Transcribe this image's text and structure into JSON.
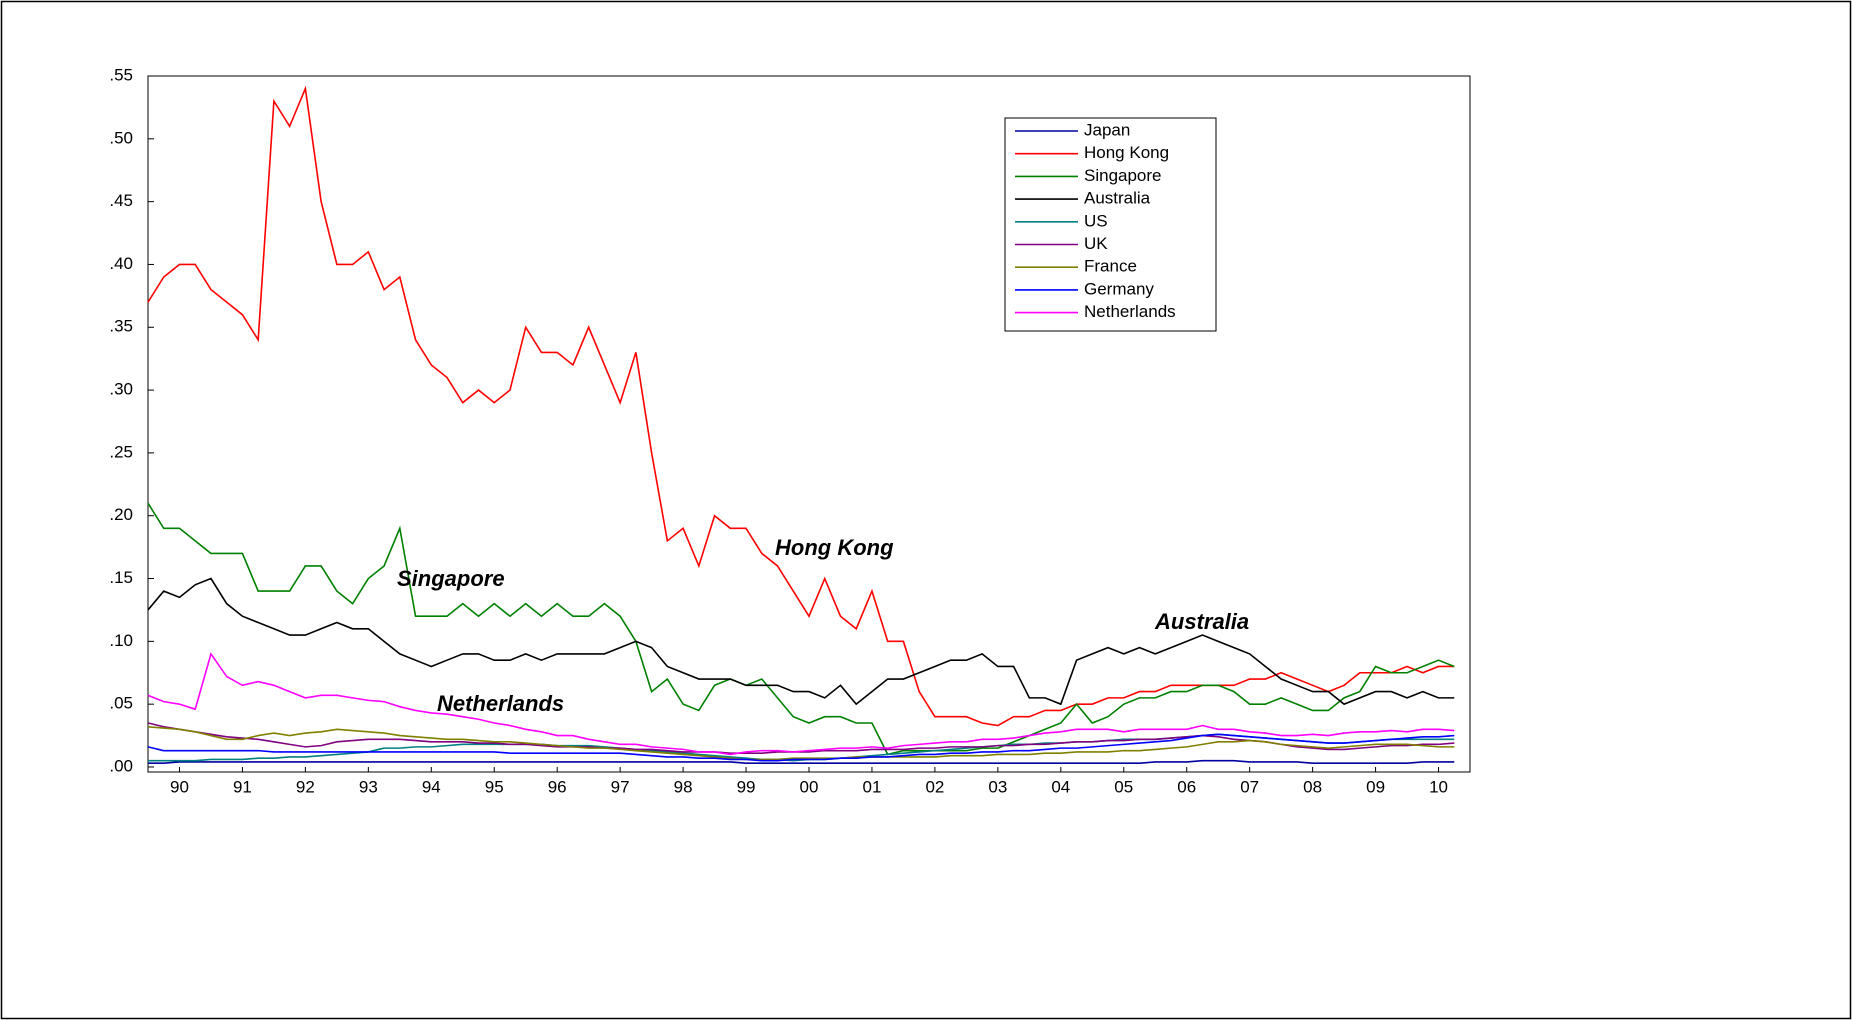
{
  "chart_data": {
    "type": "line",
    "x": [
      1990,
      1990.25,
      1990.5,
      1990.75,
      1991,
      1991.25,
      1991.5,
      1991.75,
      1992,
      1992.25,
      1992.5,
      1992.75,
      1993,
      1993.25,
      1993.5,
      1993.75,
      1994,
      1994.25,
      1994.5,
      1994.75,
      1995,
      1995.25,
      1995.5,
      1995.75,
      1996,
      1996.25,
      1996.5,
      1996.75,
      1997,
      1997.25,
      1997.5,
      1997.75,
      1998,
      1998.25,
      1998.5,
      1998.75,
      1999,
      1999.25,
      1999.5,
      1999.75,
      2000,
      2000.25,
      2000.5,
      2000.75,
      2001,
      2001.25,
      2001.5,
      2001.75,
      2002,
      2002.25,
      2002.5,
      2002.75,
      2003,
      2003.25,
      2003.5,
      2003.75,
      2004,
      2004.25,
      2004.5,
      2004.75,
      2005,
      2005.25,
      2005.5,
      2005.75,
      2006,
      2006.25,
      2006.5,
      2006.75,
      2007,
      2007.25,
      2007.5,
      2007.75,
      2008,
      2008.25,
      2008.5,
      2008.75,
      2009,
      2009.25,
      2009.5,
      2009.75,
      2010,
      2010.25,
      2010.5,
      2010.75
    ],
    "xlim": [
      1990,
      2011
    ],
    "xticks": [
      {
        "value": 1990.5,
        "label": "90"
      },
      {
        "value": 1991.5,
        "label": "91"
      },
      {
        "value": 1992.5,
        "label": "92"
      },
      {
        "value": 1993.5,
        "label": "93"
      },
      {
        "value": 1994.5,
        "label": "94"
      },
      {
        "value": 1995.5,
        "label": "95"
      },
      {
        "value": 1996.5,
        "label": "96"
      },
      {
        "value": 1997.5,
        "label": "97"
      },
      {
        "value": 1998.5,
        "label": "98"
      },
      {
        "value": 1999.5,
        "label": "99"
      },
      {
        "value": 2000.5,
        "label": "00"
      },
      {
        "value": 2001.5,
        "label": "01"
      },
      {
        "value": 2002.5,
        "label": "02"
      },
      {
        "value": 2003.5,
        "label": "03"
      },
      {
        "value": 2004.5,
        "label": "04"
      },
      {
        "value": 2005.5,
        "label": "05"
      },
      {
        "value": 2006.5,
        "label": "06"
      },
      {
        "value": 2007.5,
        "label": "07"
      },
      {
        "value": 2008.5,
        "label": "08"
      },
      {
        "value": 2009.5,
        "label": "09"
      },
      {
        "value": 2010.5,
        "label": "10"
      }
    ],
    "ylim": [
      -0.004,
      0.55
    ],
    "yticks": [
      {
        "value": 0,
        "label": ".00"
      },
      {
        "value": 0.05,
        "label": ".05"
      },
      {
        "value": 0.1,
        "label": ".10"
      },
      {
        "value": 0.15,
        "label": ".15"
      },
      {
        "value": 0.2,
        "label": ".20"
      },
      {
        "value": 0.25,
        "label": ".25"
      },
      {
        "value": 0.3,
        "label": ".30"
      },
      {
        "value": 0.35,
        "label": ".35"
      },
      {
        "value": 0.4,
        "label": ".40"
      },
      {
        "value": 0.45,
        "label": ".45"
      },
      {
        "value": 0.5,
        "label": ".50"
      },
      {
        "value": 0.55,
        "label": ".55"
      }
    ],
    "legend": "upper right",
    "annotations": [
      "Hong Kong",
      "Singapore",
      "Australia",
      "Netherlands"
    ],
    "series": [
      {
        "name": "Japan",
        "color": "#0000a0",
        "values": [
          0.003,
          0.003,
          0.004,
          0.004,
          0.004,
          0.004,
          0.004,
          0.004,
          0.004,
          0.004,
          0.004,
          0.004,
          0.004,
          0.004,
          0.004,
          0.004,
          0.004,
          0.004,
          0.004,
          0.004,
          0.004,
          0.004,
          0.004,
          0.004,
          0.004,
          0.004,
          0.004,
          0.004,
          0.004,
          0.004,
          0.004,
          0.004,
          0.004,
          0.004,
          0.004,
          0.004,
          0.004,
          0.004,
          0.003,
          0.003,
          0.003,
          0.003,
          0.003,
          0.003,
          0.003,
          0.003,
          0.003,
          0.003,
          0.003,
          0.003,
          0.003,
          0.003,
          0.003,
          0.003,
          0.003,
          0.003,
          0.003,
          0.003,
          0.003,
          0.003,
          0.003,
          0.003,
          0.003,
          0.003,
          0.004,
          0.004,
          0.004,
          0.005,
          0.005,
          0.005,
          0.004,
          0.004,
          0.004,
          0.004,
          0.003,
          0.003,
          0.003,
          0.003,
          0.003,
          0.003,
          0.003,
          0.004,
          0.004,
          0.004
        ]
      },
      {
        "name": "Hong Kong",
        "color": "#ff0000",
        "values": [
          0.37,
          0.39,
          0.4,
          0.4,
          0.38,
          0.37,
          0.36,
          0.34,
          0.53,
          0.51,
          0.54,
          0.45,
          0.4,
          0.4,
          0.41,
          0.38,
          0.39,
          0.34,
          0.32,
          0.31,
          0.29,
          0.3,
          0.29,
          0.3,
          0.35,
          0.33,
          0.33,
          0.32,
          0.35,
          0.32,
          0.29,
          0.33,
          0.25,
          0.18,
          0.19,
          0.16,
          0.2,
          0.19,
          0.19,
          0.17,
          0.16,
          0.14,
          0.12,
          0.15,
          0.12,
          0.11,
          0.14,
          0.1,
          0.1,
          0.06,
          0.04,
          0.04,
          0.04,
          0.035,
          0.033,
          0.04,
          0.04,
          0.045,
          0.045,
          0.05,
          0.05,
          0.055,
          0.055,
          0.06,
          0.06,
          0.065,
          0.065,
          0.065,
          0.065,
          0.065,
          0.07,
          0.07,
          0.075,
          0.07,
          0.065,
          0.06,
          0.065,
          0.075,
          0.075,
          0.075,
          0.08,
          0.075,
          0.08,
          0.08
        ]
      },
      {
        "name": "Singapore",
        "color": "#008000",
        "values": [
          0.21,
          0.19,
          0.19,
          0.18,
          0.17,
          0.17,
          0.17,
          0.14,
          0.14,
          0.14,
          0.16,
          0.16,
          0.14,
          0.13,
          0.15,
          0.16,
          0.19,
          0.12,
          0.12,
          0.12,
          0.13,
          0.12,
          0.13,
          0.12,
          0.13,
          0.12,
          0.13,
          0.12,
          0.12,
          0.13,
          0.12,
          0.1,
          0.06,
          0.07,
          0.05,
          0.045,
          0.065,
          0.07,
          0.065,
          0.07,
          0.055,
          0.04,
          0.035,
          0.04,
          0.04,
          0.035,
          0.035,
          0.01,
          0.013,
          0.013,
          0.013,
          0.013,
          0.013,
          0.015,
          0.015,
          0.02,
          0.025,
          0.03,
          0.035,
          0.05,
          0.035,
          0.04,
          0.05,
          0.055,
          0.055,
          0.06,
          0.06,
          0.065,
          0.065,
          0.06,
          0.05,
          0.05,
          0.055,
          0.05,
          0.045,
          0.045,
          0.055,
          0.06,
          0.08,
          0.075,
          0.075,
          0.08,
          0.085,
          0.08
        ]
      },
      {
        "name": "Australia",
        "color": "#000000",
        "values": [
          0.125,
          0.14,
          0.135,
          0.145,
          0.15,
          0.13,
          0.12,
          0.115,
          0.11,
          0.105,
          0.105,
          0.11,
          0.115,
          0.11,
          0.11,
          0.1,
          0.09,
          0.085,
          0.08,
          0.085,
          0.09,
          0.09,
          0.085,
          0.085,
          0.09,
          0.085,
          0.09,
          0.09,
          0.09,
          0.09,
          0.095,
          0.1,
          0.095,
          0.08,
          0.075,
          0.07,
          0.07,
          0.07,
          0.065,
          0.065,
          0.065,
          0.06,
          0.06,
          0.055,
          0.065,
          0.05,
          0.06,
          0.07,
          0.07,
          0.075,
          0.08,
          0.085,
          0.085,
          0.09,
          0.08,
          0.08,
          0.055,
          0.055,
          0.05,
          0.085,
          0.09,
          0.095,
          0.09,
          0.095,
          0.09,
          0.095,
          0.1,
          0.105,
          0.1,
          0.095,
          0.09,
          0.08,
          0.07,
          0.065,
          0.06,
          0.06,
          0.05,
          0.055,
          0.06,
          0.06,
          0.055,
          0.06,
          0.055,
          0.055
        ]
      },
      {
        "name": "US",
        "color": "#008080",
        "values": [
          0.005,
          0.005,
          0.005,
          0.005,
          0.006,
          0.006,
          0.006,
          0.007,
          0.007,
          0.008,
          0.008,
          0.009,
          0.01,
          0.011,
          0.012,
          0.015,
          0.015,
          0.016,
          0.016,
          0.017,
          0.018,
          0.018,
          0.018,
          0.018,
          0.018,
          0.018,
          0.017,
          0.017,
          0.017,
          0.016,
          0.015,
          0.014,
          0.013,
          0.012,
          0.011,
          0.01,
          0.009,
          0.008,
          0.007,
          0.006,
          0.006,
          0.005,
          0.006,
          0.006,
          0.007,
          0.008,
          0.009,
          0.01,
          0.011,
          0.012,
          0.013,
          0.014,
          0.015,
          0.016,
          0.017,
          0.018,
          0.018,
          0.019,
          0.019,
          0.02,
          0.02,
          0.021,
          0.022,
          0.022,
          0.022,
          0.023,
          0.024,
          0.025,
          0.026,
          0.025,
          0.024,
          0.023,
          0.022,
          0.021,
          0.02,
          0.019,
          0.019,
          0.02,
          0.021,
          0.022,
          0.022,
          0.022,
          0.022,
          0.022
        ]
      },
      {
        "name": "UK",
        "color": "#800080",
        "values": [
          0.035,
          0.032,
          0.03,
          0.028,
          0.026,
          0.024,
          0.023,
          0.022,
          0.02,
          0.018,
          0.016,
          0.017,
          0.02,
          0.021,
          0.022,
          0.022,
          0.022,
          0.021,
          0.02,
          0.02,
          0.02,
          0.019,
          0.019,
          0.018,
          0.018,
          0.017,
          0.016,
          0.016,
          0.016,
          0.015,
          0.015,
          0.014,
          0.014,
          0.013,
          0.012,
          0.012,
          0.012,
          0.011,
          0.011,
          0.011,
          0.012,
          0.012,
          0.012,
          0.013,
          0.013,
          0.013,
          0.014,
          0.014,
          0.014,
          0.015,
          0.015,
          0.016,
          0.016,
          0.016,
          0.017,
          0.017,
          0.018,
          0.018,
          0.019,
          0.02,
          0.02,
          0.021,
          0.021,
          0.022,
          0.022,
          0.023,
          0.024,
          0.025,
          0.024,
          0.022,
          0.021,
          0.02,
          0.018,
          0.016,
          0.015,
          0.014,
          0.014,
          0.015,
          0.016,
          0.017,
          0.017,
          0.018,
          0.018,
          0.019
        ]
      },
      {
        "name": "France",
        "color": "#808000",
        "values": [
          0.032,
          0.031,
          0.03,
          0.028,
          0.025,
          0.022,
          0.022,
          0.025,
          0.027,
          0.025,
          0.027,
          0.028,
          0.03,
          0.029,
          0.028,
          0.027,
          0.025,
          0.024,
          0.023,
          0.022,
          0.022,
          0.021,
          0.02,
          0.02,
          0.019,
          0.018,
          0.017,
          0.016,
          0.015,
          0.015,
          0.014,
          0.013,
          0.012,
          0.011,
          0.01,
          0.009,
          0.008,
          0.007,
          0.006,
          0.006,
          0.006,
          0.007,
          0.007,
          0.007,
          0.007,
          0.008,
          0.008,
          0.008,
          0.008,
          0.008,
          0.008,
          0.009,
          0.009,
          0.009,
          0.01,
          0.01,
          0.01,
          0.011,
          0.011,
          0.012,
          0.012,
          0.012,
          0.013,
          0.013,
          0.014,
          0.015,
          0.016,
          0.018,
          0.02,
          0.02,
          0.021,
          0.02,
          0.018,
          0.017,
          0.016,
          0.015,
          0.016,
          0.017,
          0.018,
          0.018,
          0.018,
          0.017,
          0.016,
          0.016
        ]
      },
      {
        "name": "Germany",
        "color": "#0000ff",
        "values": [
          0.016,
          0.013,
          0.013,
          0.013,
          0.013,
          0.013,
          0.013,
          0.013,
          0.012,
          0.012,
          0.012,
          0.012,
          0.012,
          0.012,
          0.012,
          0.012,
          0.012,
          0.012,
          0.012,
          0.012,
          0.012,
          0.012,
          0.012,
          0.011,
          0.011,
          0.011,
          0.011,
          0.011,
          0.011,
          0.011,
          0.011,
          0.01,
          0.009,
          0.008,
          0.008,
          0.007,
          0.007,
          0.006,
          0.006,
          0.005,
          0.005,
          0.006,
          0.006,
          0.006,
          0.007,
          0.007,
          0.008,
          0.008,
          0.009,
          0.01,
          0.01,
          0.011,
          0.011,
          0.012,
          0.012,
          0.013,
          0.013,
          0.014,
          0.015,
          0.015,
          0.016,
          0.017,
          0.018,
          0.019,
          0.02,
          0.021,
          0.023,
          0.025,
          0.026,
          0.025,
          0.024,
          0.023,
          0.022,
          0.021,
          0.02,
          0.019,
          0.019,
          0.02,
          0.021,
          0.022,
          0.023,
          0.024,
          0.024,
          0.025
        ]
      },
      {
        "name": "Netherlands",
        "color": "#ff00ff",
        "values": [
          0.057,
          0.052,
          0.05,
          0.046,
          0.09,
          0.072,
          0.065,
          0.068,
          0.065,
          0.06,
          0.055,
          0.057,
          0.057,
          0.055,
          0.053,
          0.052,
          0.048,
          0.045,
          0.043,
          0.042,
          0.04,
          0.038,
          0.035,
          0.033,
          0.03,
          0.028,
          0.025,
          0.025,
          0.022,
          0.02,
          0.018,
          0.018,
          0.016,
          0.015,
          0.014,
          0.012,
          0.012,
          0.01,
          0.012,
          0.013,
          0.013,
          0.012,
          0.013,
          0.014,
          0.015,
          0.015,
          0.016,
          0.015,
          0.017,
          0.018,
          0.019,
          0.02,
          0.02,
          0.022,
          0.022,
          0.023,
          0.025,
          0.027,
          0.028,
          0.03,
          0.03,
          0.03,
          0.028,
          0.03,
          0.03,
          0.03,
          0.03,
          0.033,
          0.03,
          0.03,
          0.028,
          0.027,
          0.025,
          0.025,
          0.026,
          0.025,
          0.027,
          0.028,
          0.028,
          0.029,
          0.028,
          0.03,
          0.03,
          0.029
        ]
      }
    ]
  }
}
